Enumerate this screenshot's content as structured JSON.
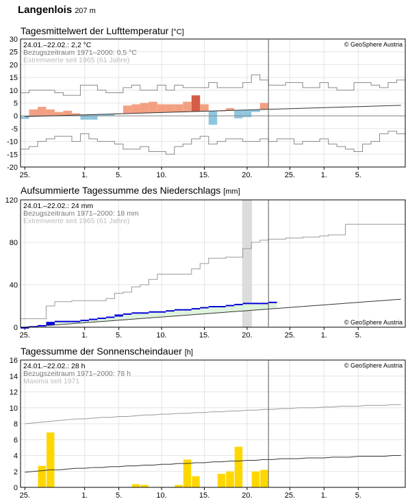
{
  "station": {
    "name": "Langenlois",
    "elevation": "207 m"
  },
  "copyright": "© GeoSphere Austria",
  "x_ticks": [
    {
      "day": 0,
      "label": "25."
    },
    {
      "day": 7,
      "label": "1."
    },
    {
      "day": 11,
      "label": "5."
    },
    {
      "day": 16,
      "label": "10."
    },
    {
      "day": 21,
      "label": "15."
    },
    {
      "day": 26,
      "label": "20."
    },
    {
      "day": 31,
      "label": "25."
    },
    {
      "day": 35,
      "label": "1."
    },
    {
      "day": 39,
      "label": "5."
    }
  ],
  "chart_data": [
    {
      "type": "bar",
      "title": "Tagesmittelwert der Lufttemperatur",
      "unit": "[°C]",
      "info": [
        "24.01.–22.02.: 2,2 °C",
        "Bezugszeitraum 1971–2000: 0,5 °C",
        "Extremwerte seit 1965 (61 Jahre)"
      ],
      "ylim": [
        -20,
        30
      ],
      "yticks": [
        -20,
        -15,
        -10,
        -5,
        0,
        5,
        10,
        15,
        20,
        25,
        30
      ],
      "values": [
        -1.2,
        2.5,
        3.5,
        2.5,
        1.5,
        2.0,
        1.0,
        -1.5,
        -1.5,
        0.0,
        0.0,
        1.0,
        4.0,
        4.5,
        5.0,
        5.5,
        4.5,
        4.5,
        4.5,
        5.5,
        8.0,
        4.5,
        -3.5,
        2.0,
        3.0,
        -1.0,
        -0.5,
        1.5,
        5.0
      ],
      "climate_mean": [
        -0.3,
        -0.2,
        -0.1,
        0.0,
        0.1,
        0.2,
        0.3,
        0.4,
        0.5,
        0.6,
        0.7,
        0.8,
        0.9,
        1.0,
        1.1,
        1.2,
        1.3,
        1.4,
        1.5,
        1.6,
        1.7,
        1.8,
        1.9,
        2.0,
        2.1,
        2.2,
        2.3,
        2.4,
        2.5,
        2.6,
        2.7,
        2.8,
        2.9,
        3.0,
        3.1,
        3.2,
        3.3,
        3.4,
        3.5,
        3.6,
        3.7,
        3.8,
        3.9,
        4.0,
        4.1
      ],
      "abs_max": [
        9,
        10,
        10,
        10,
        9,
        8,
        8,
        12,
        12,
        10,
        9,
        9,
        11,
        12,
        10,
        10,
        12,
        10,
        12,
        11,
        11,
        11,
        13,
        11,
        11,
        11,
        13,
        16,
        14,
        12,
        12,
        13,
        13,
        11,
        11,
        13,
        11,
        10,
        10,
        13,
        13,
        12,
        11,
        13,
        14
      ],
      "abs_min": [
        -13,
        -12,
        -10,
        -9,
        -8,
        -8,
        -10,
        -7,
        -9,
        -10,
        -10,
        -11,
        -13,
        -13,
        -12,
        -14,
        -14,
        -15,
        -12,
        -11,
        -9,
        -8,
        -11,
        -10,
        -9,
        -9,
        -10,
        -10,
        -9,
        -10,
        -9,
        -9,
        -11,
        -10,
        -10,
        -9,
        -11,
        -12,
        -13,
        -14,
        -11,
        -10,
        -7,
        -6,
        -7
      ]
    },
    {
      "type": "line",
      "title": "Aufsummierte Tagessumme des Niederschlags",
      "unit": "[mm]",
      "info": [
        "24.01.–22.02.: 24 mm",
        "Bezugszeitraum 1971–2000: 18 mm",
        "Extremwerte seit 1965 (61 Jahre)"
      ],
      "ylim": [
        0,
        120
      ],
      "yticks": [
        0,
        40,
        80,
        120
      ],
      "cumulative": [
        0,
        1,
        2,
        5,
        6,
        6,
        6,
        7,
        8,
        9,
        10,
        12,
        13,
        14,
        14,
        15,
        15,
        16,
        17,
        17,
        18,
        19,
        20,
        20,
        21,
        22,
        23,
        23,
        23,
        24
      ],
      "climate_cumulative": [
        0.0,
        0.6,
        1.2,
        1.8,
        2.4,
        3.0,
        3.6,
        4.2,
        4.8,
        5.4,
        6.0,
        6.6,
        7.2,
        7.8,
        8.4,
        9.0,
        9.6,
        10.2,
        10.8,
        11.4,
        12.0,
        12.6,
        13.2,
        13.8,
        14.4,
        15.0,
        15.6,
        16.2,
        16.8,
        17.4,
        18.0,
        18.6,
        19.2,
        19.8,
        20.4,
        21.0,
        21.6,
        22.2,
        22.8,
        23.4,
        24.0,
        24.6,
        25.2,
        25.8,
        26.4
      ],
      "max_cumulative": [
        8,
        8,
        8,
        20,
        24,
        24,
        25,
        25,
        25,
        25,
        27,
        32,
        33,
        38,
        40,
        45,
        50,
        50,
        50,
        50,
        55,
        60,
        65,
        65,
        66,
        66,
        74,
        80,
        82,
        83,
        83,
        84,
        84,
        85,
        85,
        86,
        87,
        87,
        97,
        97,
        97,
        97,
        97,
        97,
        97
      ],
      "missing_day": 26
    },
    {
      "type": "bar",
      "title": "Tagessumme der Sonnenscheindauer",
      "unit": "[h]",
      "info": [
        "24.01.–22.02.: 28 h",
        "Bezugszeitraum 1971–2000: 78 h",
        "Maxima seit 1971"
      ],
      "ylim": [
        0,
        16
      ],
      "yticks": [
        0,
        2,
        4,
        6,
        8,
        10,
        12,
        14,
        16
      ],
      "values": [
        0,
        0,
        2.7,
        6.9,
        0,
        0,
        0,
        0,
        0,
        0,
        0,
        0,
        0,
        0.4,
        0.3,
        0,
        0,
        0,
        0.3,
        3.5,
        1.4,
        0,
        0,
        1.7,
        2.0,
        5.1,
        0,
        2.0,
        2.2
      ],
      "climate_cumulative": [
        1.9,
        2.0,
        2.1,
        2.2,
        2.2,
        2.3,
        2.4,
        2.4,
        2.5,
        2.5,
        2.6,
        2.6,
        2.7,
        2.7,
        2.8,
        2.8,
        2.9,
        2.9,
        3.0,
        3.0,
        3.1,
        3.1,
        3.2,
        3.2,
        3.3,
        3.3,
        3.4,
        3.4,
        3.5,
        3.5,
        3.6,
        3.6,
        3.6,
        3.7,
        3.7,
        3.7,
        3.8,
        3.8,
        3.8,
        3.9,
        3.9,
        3.9,
        3.9,
        4.0,
        4.0
      ],
      "max_line": [
        8.0,
        8.1,
        8.2,
        8.3,
        8.4,
        8.5,
        8.6,
        8.6,
        8.7,
        8.8,
        8.8,
        8.9,
        8.9,
        9.0,
        9.1,
        9.1,
        9.2,
        9.2,
        9.3,
        9.3,
        9.4,
        9.4,
        9.5,
        9.5,
        9.6,
        9.6,
        9.7,
        9.7,
        9.8,
        9.8,
        9.9,
        9.9,
        10.0,
        10.0,
        10.0,
        10.1,
        10.1,
        10.2,
        10.2,
        10.2,
        10.3,
        10.3,
        10.3,
        10.4,
        10.4
      ]
    }
  ],
  "colors": {
    "warm": "#f3a082",
    "warm_dark": "#d45d48",
    "cold": "#8fc6e0",
    "precip": "#0000d8",
    "precip_fill": "#dff3dc",
    "sun": "#ffd700",
    "grid": "#e4e4e4",
    "missing": "#dcdcdc"
  }
}
